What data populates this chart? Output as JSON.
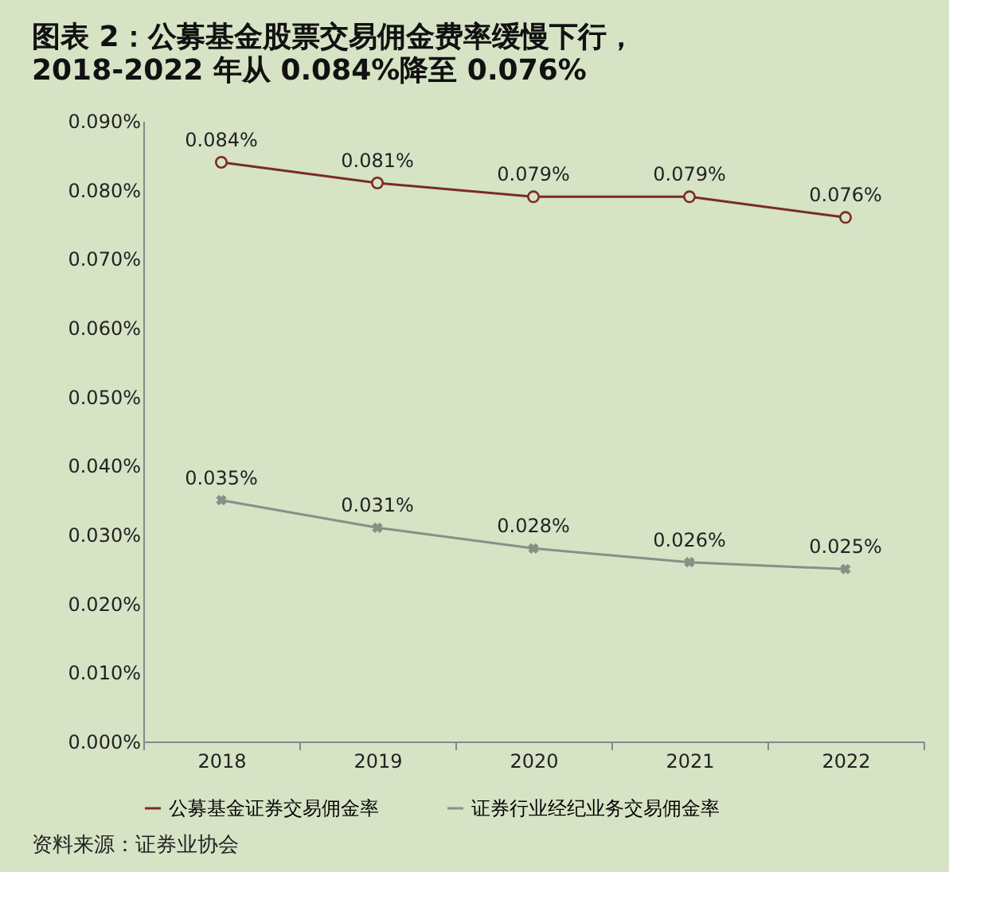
{
  "chart_data": {
    "type": "line",
    "title": "图表 2：公募基金股票交易佣金费率缓慢下行，",
    "subtitle": "2018-2022 年从 0.084%降至 0.076%",
    "categories": [
      "2018",
      "2019",
      "2020",
      "2021",
      "2022"
    ],
    "series": [
      {
        "name": "公募基金证券交易佣金率",
        "color": "#7b2a2a",
        "marker": "circle",
        "values": [
          0.084,
          0.081,
          0.079,
          0.079,
          0.076
        ],
        "value_labels": [
          "0.084%",
          "0.081%",
          "0.079%",
          "0.079%",
          "0.076%"
        ]
      },
      {
        "name": "证券行业经纪业务交易佣金率",
        "color": "#8a8f86",
        "marker": "cross",
        "values": [
          0.035,
          0.031,
          0.028,
          0.026,
          0.025
        ],
        "value_labels": [
          "0.035%",
          "0.031%",
          "0.028%",
          "0.026%",
          "0.025%"
        ]
      }
    ],
    "ylim": [
      0,
      0.09
    ],
    "yticks": [
      {
        "value": 0,
        "label": "0.000%"
      },
      {
        "value": 0.01,
        "label": "0.010%"
      },
      {
        "value": 0.02,
        "label": "0.020%"
      },
      {
        "value": 0.03,
        "label": "0.030%"
      },
      {
        "value": 0.04,
        "label": "0.040%"
      },
      {
        "value": 0.05,
        "label": "0.050%"
      },
      {
        "value": 0.06,
        "label": "0.060%"
      },
      {
        "value": 0.07,
        "label": "0.070%"
      },
      {
        "value": 0.08,
        "label": "0.080%"
      },
      {
        "value": 0.09,
        "label": "0.090%"
      }
    ],
    "grid": false,
    "legend": "bottom",
    "annotations": [
      "资料来源：证券业协会"
    ]
  }
}
